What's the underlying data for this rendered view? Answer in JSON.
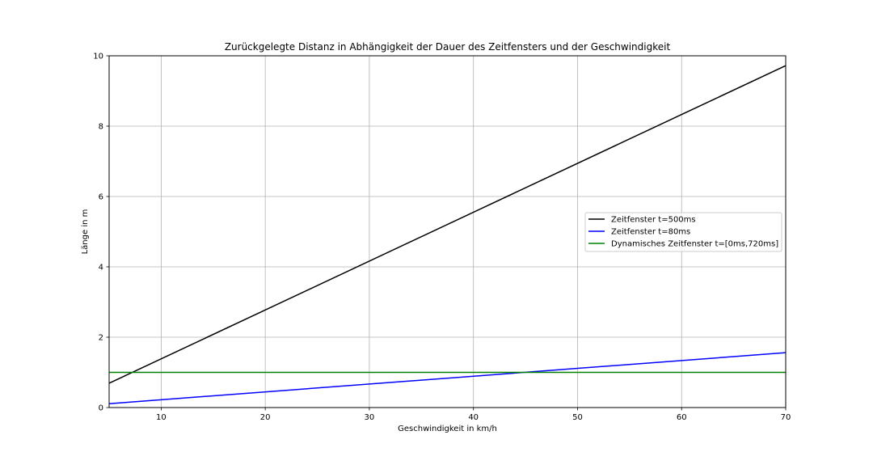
{
  "chart_data": {
    "type": "line",
    "title": "Zurückgelegte Distanz in Abhängigkeit der Dauer des Zeitfensters und der Geschwindigkeit",
    "xlabel": "Geschwindigkeit in km/h",
    "ylabel": "Länge in m",
    "xlim": [
      5,
      70
    ],
    "ylim": [
      0,
      10
    ],
    "xticks": [
      10,
      20,
      30,
      40,
      50,
      60,
      70
    ],
    "yticks": [
      0,
      2,
      4,
      6,
      8,
      10
    ],
    "grid": true,
    "legend_position": "center-right",
    "series": [
      {
        "name": "Zeitfenster t=500ms",
        "color": "#000000",
        "x": [
          5,
          70
        ],
        "y": [
          0.69,
          9.72
        ]
      },
      {
        "name": "Zeitfenster t=80ms",
        "color": "#0000ff",
        "x": [
          5,
          70
        ],
        "y": [
          0.11,
          1.56
        ]
      },
      {
        "name": "Dynamisches Zeitfenster t=[0ms,720ms]",
        "color": "#008000",
        "x": [
          5,
          70
        ],
        "y": [
          1.0,
          1.0
        ]
      }
    ]
  }
}
